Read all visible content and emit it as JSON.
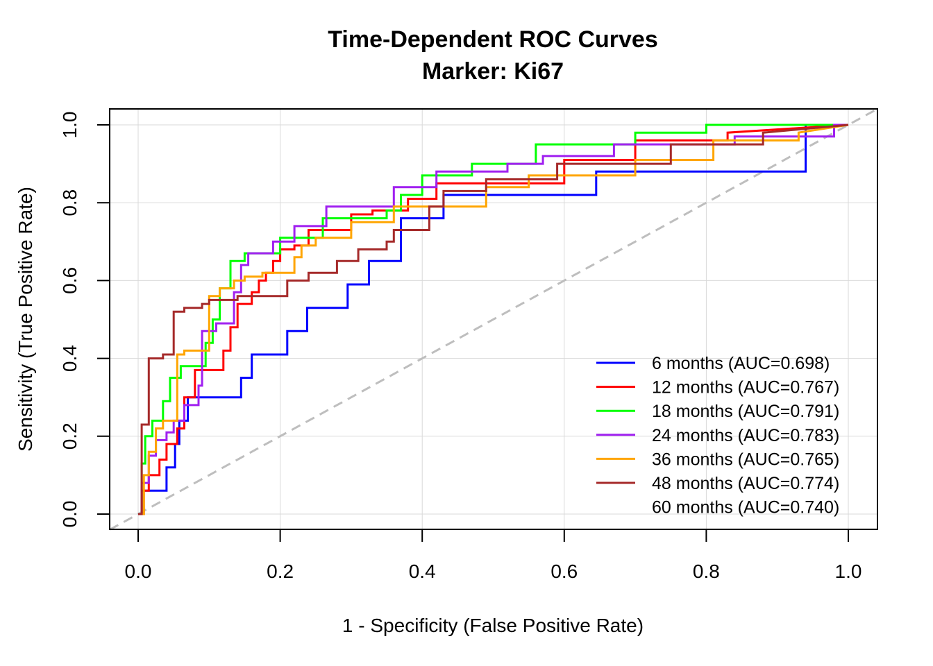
{
  "chart_data": {
    "type": "line",
    "title": "Time-Dependent ROC Curves",
    "subtitle": "Marker: Ki67",
    "xlabel": "1 - Specificity (False Positive Rate)",
    "ylabel": "Sensitivity (True Positive Rate)",
    "xlim": [
      0,
      1
    ],
    "ylim": [
      0,
      1
    ],
    "x_ticks": [
      "0.0",
      "0.2",
      "0.4",
      "0.6",
      "0.8",
      "1.0"
    ],
    "y_ticks": [
      "0.0",
      "0.2",
      "0.4",
      "0.6",
      "0.8",
      "1.0"
    ],
    "grid": true,
    "legend_position": "bottom-right",
    "reference_line": {
      "x": [
        0,
        1
      ],
      "y": [
        0,
        1
      ],
      "color": "#bebebe",
      "style": "dashed"
    },
    "series": [
      {
        "name": "6 months (AUC=0.698)",
        "color": "#0000ff",
        "x": [
          0,
          0.005,
          0.005,
          0.015,
          0.015,
          0.04,
          0.04,
          0.052,
          0.052,
          0.058,
          0.058,
          0.07,
          0.07,
          0.075,
          0.075,
          0.145,
          0.145,
          0.16,
          0.16,
          0.168,
          0.168,
          0.21,
          0.21,
          0.222,
          0.222,
          0.238,
          0.238,
          0.295,
          0.295,
          0.302,
          0.302,
          0.325,
          0.325,
          0.37,
          0.37,
          0.38,
          0.38,
          0.43,
          0.43,
          0.645,
          0.645,
          0.755,
          0.755,
          0.94,
          0.94,
          1.0
        ],
        "y": [
          0,
          0,
          0.06,
          0.06,
          0.06,
          0.06,
          0.12,
          0.12,
          0.18,
          0.18,
          0.24,
          0.24,
          0.3,
          0.3,
          0.3,
          0.3,
          0.35,
          0.35,
          0.41,
          0.41,
          0.41,
          0.41,
          0.47,
          0.47,
          0.47,
          0.47,
          0.53,
          0.53,
          0.59,
          0.59,
          0.59,
          0.59,
          0.65,
          0.65,
          0.76,
          0.76,
          0.76,
          0.76,
          0.82,
          0.82,
          0.88,
          0.88,
          0.88,
          0.88,
          1.0,
          1.0
        ]
      },
      {
        "name": "12 months (AUC=0.767)",
        "color": "#ff0000",
        "x": [
          0,
          0.008,
          0.008,
          0.015,
          0.015,
          0.03,
          0.03,
          0.04,
          0.04,
          0.055,
          0.055,
          0.065,
          0.065,
          0.08,
          0.08,
          0.085,
          0.085,
          0.12,
          0.12,
          0.13,
          0.13,
          0.14,
          0.14,
          0.16,
          0.16,
          0.17,
          0.17,
          0.18,
          0.18,
          0.19,
          0.19,
          0.2,
          0.2,
          0.22,
          0.22,
          0.24,
          0.24,
          0.3,
          0.3,
          0.33,
          0.33,
          0.38,
          0.38,
          0.42,
          0.42,
          0.6,
          0.6,
          0.7,
          0.7,
          0.83,
          0.83,
          1.0
        ],
        "y": [
          0,
          0,
          0.06,
          0.06,
          0.1,
          0.1,
          0.14,
          0.14,
          0.18,
          0.18,
          0.22,
          0.22,
          0.3,
          0.3,
          0.37,
          0.37,
          0.37,
          0.37,
          0.42,
          0.42,
          0.48,
          0.48,
          0.54,
          0.54,
          0.57,
          0.57,
          0.6,
          0.6,
          0.62,
          0.62,
          0.65,
          0.65,
          0.68,
          0.68,
          0.69,
          0.69,
          0.73,
          0.73,
          0.77,
          0.77,
          0.78,
          0.78,
          0.81,
          0.81,
          0.85,
          0.85,
          0.91,
          0.91,
          0.96,
          0.96,
          0.98,
          1.0
        ]
      },
      {
        "name": "18 months (AUC=0.791)",
        "color": "#00ff00",
        "x": [
          0,
          0.005,
          0.005,
          0.01,
          0.01,
          0.02,
          0.02,
          0.035,
          0.035,
          0.045,
          0.045,
          0.06,
          0.06,
          0.095,
          0.095,
          0.105,
          0.105,
          0.115,
          0.115,
          0.13,
          0.13,
          0.15,
          0.15,
          0.17,
          0.17,
          0.2,
          0.2,
          0.22,
          0.22,
          0.26,
          0.26,
          0.3,
          0.3,
          0.35,
          0.35,
          0.37,
          0.37,
          0.4,
          0.4,
          0.47,
          0.47,
          0.56,
          0.56,
          0.7,
          0.7,
          0.8,
          0.8,
          0.93,
          0.93,
          1.0
        ],
        "y": [
          0,
          0,
          0.13,
          0.13,
          0.2,
          0.2,
          0.24,
          0.24,
          0.29,
          0.29,
          0.35,
          0.35,
          0.38,
          0.38,
          0.44,
          0.44,
          0.5,
          0.5,
          0.58,
          0.58,
          0.65,
          0.65,
          0.67,
          0.67,
          0.67,
          0.67,
          0.71,
          0.71,
          0.71,
          0.71,
          0.76,
          0.76,
          0.76,
          0.76,
          0.78,
          0.78,
          0.82,
          0.82,
          0.87,
          0.87,
          0.9,
          0.9,
          0.95,
          0.95,
          0.98,
          0.98,
          1.0,
          1.0,
          1.0,
          1.0
        ]
      },
      {
        "name": "24 months (AUC=0.783)",
        "color": "#a020f0",
        "x": [
          0,
          0.005,
          0.005,
          0.015,
          0.015,
          0.025,
          0.025,
          0.04,
          0.04,
          0.05,
          0.05,
          0.065,
          0.065,
          0.085,
          0.085,
          0.09,
          0.09,
          0.11,
          0.11,
          0.135,
          0.135,
          0.145,
          0.145,
          0.155,
          0.155,
          0.19,
          0.19,
          0.22,
          0.22,
          0.265,
          0.265,
          0.36,
          0.36,
          0.42,
          0.42,
          0.52,
          0.52,
          0.57,
          0.57,
          0.67,
          0.67,
          0.84,
          0.84,
          0.98,
          0.98,
          1.0
        ],
        "y": [
          0,
          0,
          0.08,
          0.08,
          0.15,
          0.15,
          0.19,
          0.19,
          0.21,
          0.21,
          0.24,
          0.24,
          0.28,
          0.28,
          0.33,
          0.33,
          0.47,
          0.47,
          0.49,
          0.49,
          0.57,
          0.57,
          0.64,
          0.64,
          0.67,
          0.67,
          0.7,
          0.7,
          0.74,
          0.74,
          0.79,
          0.79,
          0.84,
          0.84,
          0.88,
          0.88,
          0.9,
          0.9,
          0.92,
          0.92,
          0.95,
          0.95,
          0.97,
          0.97,
          1.0,
          1.0
        ]
      },
      {
        "name": "36 months (AUC=0.765)",
        "color": "#ffa500",
        "x": [
          0,
          0.008,
          0.008,
          0.015,
          0.015,
          0.025,
          0.025,
          0.035,
          0.035,
          0.055,
          0.055,
          0.065,
          0.065,
          0.1,
          0.1,
          0.115,
          0.115,
          0.135,
          0.135,
          0.15,
          0.15,
          0.175,
          0.175,
          0.22,
          0.22,
          0.23,
          0.23,
          0.25,
          0.25,
          0.3,
          0.3,
          0.36,
          0.36,
          0.49,
          0.49,
          0.55,
          0.55,
          0.7,
          0.7,
          0.81,
          0.81,
          0.93,
          0.93,
          1.0
        ],
        "y": [
          0,
          0,
          0.1,
          0.1,
          0.16,
          0.16,
          0.22,
          0.22,
          0.24,
          0.24,
          0.41,
          0.41,
          0.42,
          0.42,
          0.56,
          0.56,
          0.58,
          0.58,
          0.6,
          0.6,
          0.61,
          0.61,
          0.62,
          0.62,
          0.66,
          0.66,
          0.69,
          0.69,
          0.71,
          0.71,
          0.75,
          0.75,
          0.79,
          0.79,
          0.84,
          0.84,
          0.87,
          0.87,
          0.91,
          0.91,
          0.96,
          0.96,
          0.98,
          1.0
        ]
      },
      {
        "name": "48 months (AUC=0.774)",
        "color": "#a52a2a",
        "x": [
          0,
          0.005,
          0.005,
          0.015,
          0.015,
          0.035,
          0.035,
          0.05,
          0.05,
          0.065,
          0.065,
          0.09,
          0.09,
          0.1,
          0.1,
          0.14,
          0.14,
          0.21,
          0.21,
          0.23,
          0.23,
          0.24,
          0.24,
          0.28,
          0.28,
          0.31,
          0.31,
          0.35,
          0.35,
          0.36,
          0.36,
          0.41,
          0.41,
          0.43,
          0.43,
          0.49,
          0.49,
          0.59,
          0.59,
          0.75,
          0.75,
          0.88,
          0.88,
          1.0
        ],
        "y": [
          0,
          0,
          0.23,
          0.23,
          0.4,
          0.4,
          0.41,
          0.41,
          0.52,
          0.52,
          0.53,
          0.53,
          0.54,
          0.54,
          0.55,
          0.55,
          0.56,
          0.56,
          0.6,
          0.6,
          0.6,
          0.6,
          0.62,
          0.62,
          0.65,
          0.65,
          0.68,
          0.68,
          0.7,
          0.7,
          0.73,
          0.73,
          0.79,
          0.79,
          0.83,
          0.83,
          0.86,
          0.86,
          0.9,
          0.9,
          0.95,
          0.95,
          0.98,
          1.0
        ]
      },
      {
        "name": "60 months (AUC=0.740)",
        "color": "#ffffff"
      }
    ]
  }
}
